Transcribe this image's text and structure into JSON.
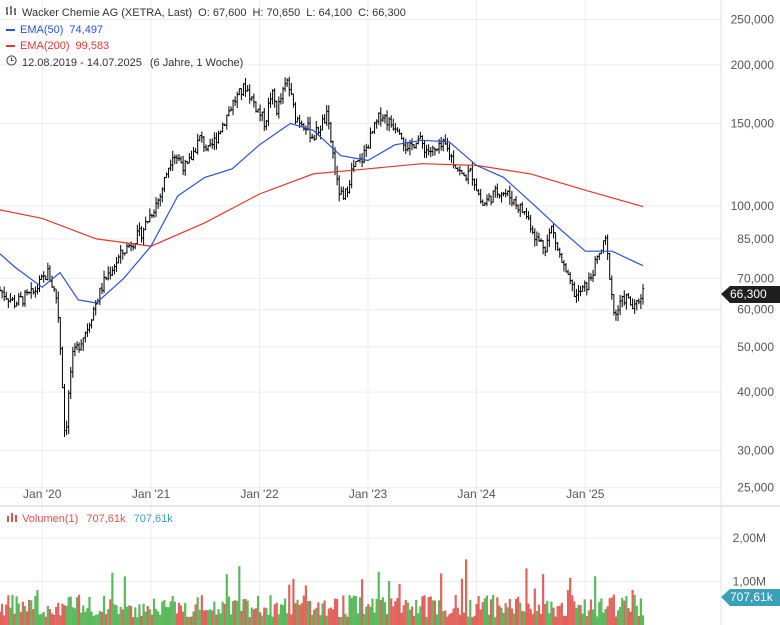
{
  "header": {
    "title": "Wacker Chemie AG (XETRA, Last)",
    "ohlc": [
      {
        "key": "O:",
        "value": "67,600"
      },
      {
        "key": "H:",
        "value": "70,650"
      },
      {
        "key": "L:",
        "value": "64,100"
      },
      {
        "key": "C:",
        "value": "66,300"
      }
    ],
    "ema50": {
      "label": "EMA(50)",
      "value": "74,497",
      "color": "#2b4fd8"
    },
    "ema200": {
      "label": "EMA(200)",
      "value": "99,583",
      "color": "#e0392f"
    },
    "range": "12.08.2019 - 14.07.2025",
    "range_note": "(6 Jahre, 1 Woche)"
  },
  "price_tag": {
    "value": "66,300"
  },
  "volume": {
    "label": "Volumen(1)",
    "value": "707,61k",
    "value_alt": "707,61k",
    "tag": "707,61k",
    "up_color": "#5cb85c",
    "down_color": "#e0645c",
    "ticks": [
      {
        "label": "2,00M",
        "value": 2000000
      },
      {
        "label": "1,00M",
        "value": 1000000
      }
    ]
  },
  "chart_data": {
    "type": "candlestick",
    "y_scale": "log",
    "ylim": [
      24000,
      262000
    ],
    "y_ticks": [
      {
        "label": "250,000",
        "value": 250000
      },
      {
        "label": "200,000",
        "value": 200000
      },
      {
        "label": "150,000",
        "value": 150000
      },
      {
        "label": "100,000",
        "value": 100000
      },
      {
        "label": "85,000",
        "value": 85000
      },
      {
        "label": "70,000",
        "value": 70000
      },
      {
        "label": "60,000",
        "value": 60000
      },
      {
        "label": "50,000",
        "value": 50000
      },
      {
        "label": "40,000",
        "value": 40000
      },
      {
        "label": "30,000",
        "value": 30000
      },
      {
        "label": "25,000",
        "value": 25000
      }
    ],
    "x_ticks": [
      {
        "label": "Jan '20",
        "date": "2020-01-01"
      },
      {
        "label": "Jan '21",
        "date": "2021-01-01"
      },
      {
        "label": "Jan '22",
        "date": "2022-01-01"
      },
      {
        "label": "Jan '23",
        "date": "2023-01-01"
      },
      {
        "label": "Jan '24",
        "date": "2024-01-01"
      },
      {
        "label": "Jan '25",
        "date": "2025-01-01"
      }
    ],
    "x_range": [
      "2019-08-12",
      "2025-07-14"
    ],
    "price_path": [
      [
        "2019-08-12",
        66
      ],
      [
        "2019-10-01",
        62
      ],
      [
        "2019-12-01",
        65
      ],
      [
        "2020-01-20",
        72
      ],
      [
        "2020-02-20",
        63
      ],
      [
        "2020-03-18",
        31
      ],
      [
        "2020-04-10",
        47
      ],
      [
        "2020-06-01",
        55
      ],
      [
        "2020-08-01",
        70
      ],
      [
        "2020-10-01",
        80
      ],
      [
        "2020-12-01",
        88
      ],
      [
        "2021-02-01",
        105
      ],
      [
        "2021-03-15",
        130
      ],
      [
        "2021-05-01",
        120
      ],
      [
        "2021-06-15",
        140
      ],
      [
        "2021-07-15",
        130
      ],
      [
        "2021-09-01",
        150
      ],
      [
        "2021-10-01",
        165
      ],
      [
        "2021-11-15",
        180
      ],
      [
        "2021-12-15",
        165
      ],
      [
        "2022-01-20",
        150
      ],
      [
        "2022-02-10",
        175
      ],
      [
        "2022-03-01",
        160
      ],
      [
        "2022-04-05",
        185
      ],
      [
        "2022-05-01",
        155
      ],
      [
        "2022-06-01",
        150
      ],
      [
        "2022-07-01",
        140
      ],
      [
        "2022-08-15",
        155
      ],
      [
        "2022-09-20",
        110
      ],
      [
        "2022-10-10",
        102
      ],
      [
        "2022-11-10",
        120
      ],
      [
        "2022-12-10",
        125
      ],
      [
        "2023-01-20",
        145
      ],
      [
        "2023-02-15",
        158
      ],
      [
        "2023-03-15",
        150
      ],
      [
        "2023-04-15",
        148
      ],
      [
        "2023-05-15",
        130
      ],
      [
        "2023-06-15",
        140
      ],
      [
        "2023-07-15",
        132
      ],
      [
        "2023-08-15",
        130
      ],
      [
        "2023-09-15",
        135
      ],
      [
        "2023-10-15",
        125
      ],
      [
        "2023-11-15",
        115
      ],
      [
        "2023-12-15",
        118
      ],
      [
        "2024-01-20",
        100
      ],
      [
        "2024-02-20",
        105
      ],
      [
        "2024-03-20",
        108
      ],
      [
        "2024-04-20",
        105
      ],
      [
        "2024-05-20",
        100
      ],
      [
        "2024-06-20",
        95
      ],
      [
        "2024-07-20",
        85
      ],
      [
        "2024-08-20",
        82
      ],
      [
        "2024-09-10",
        90
      ],
      [
        "2024-10-01",
        80
      ],
      [
        "2024-11-01",
        70
      ],
      [
        "2024-12-01",
        64
      ],
      [
        "2025-01-10",
        68
      ],
      [
        "2025-02-15",
        78
      ],
      [
        "2025-03-10",
        84
      ],
      [
        "2025-04-08",
        58
      ],
      [
        "2025-05-15",
        64
      ],
      [
        "2025-06-15",
        60
      ],
      [
        "2025-07-14",
        66
      ]
    ],
    "ema50_path": [
      [
        "2019-08-12",
        79
      ],
      [
        "2019-10-01",
        74
      ],
      [
        "2020-01-01",
        67
      ],
      [
        "2020-03-01",
        72
      ],
      [
        "2020-05-01",
        63
      ],
      [
        "2020-07-01",
        62
      ],
      [
        "2020-10-01",
        70
      ],
      [
        "2021-01-01",
        82
      ],
      [
        "2021-04-01",
        105
      ],
      [
        "2021-07-01",
        115
      ],
      [
        "2021-10-01",
        120
      ],
      [
        "2022-01-01",
        135
      ],
      [
        "2022-04-15",
        150
      ],
      [
        "2022-07-01",
        145
      ],
      [
        "2022-10-01",
        128
      ],
      [
        "2023-01-01",
        125
      ],
      [
        "2023-04-01",
        135
      ],
      [
        "2023-07-01",
        138
      ],
      [
        "2023-10-01",
        137
      ],
      [
        "2024-01-01",
        122
      ],
      [
        "2024-04-01",
        115
      ],
      [
        "2024-07-01",
        102
      ],
      [
        "2024-10-01",
        90
      ],
      [
        "2025-01-01",
        80
      ],
      [
        "2025-04-01",
        80
      ],
      [
        "2025-07-14",
        74.5
      ]
    ],
    "ema200_path": [
      [
        "2019-08-12",
        98
      ],
      [
        "2020-01-01",
        94
      ],
      [
        "2020-07-01",
        85
      ],
      [
        "2021-01-01",
        82
      ],
      [
        "2021-07-01",
        92
      ],
      [
        "2022-01-01",
        106
      ],
      [
        "2022-07-01",
        117
      ],
      [
        "2023-01-01",
        120
      ],
      [
        "2023-07-01",
        123
      ],
      [
        "2024-01-01",
        122
      ],
      [
        "2024-07-01",
        117
      ],
      [
        "2025-01-01",
        108
      ],
      [
        "2025-07-14",
        99.6
      ]
    ]
  }
}
